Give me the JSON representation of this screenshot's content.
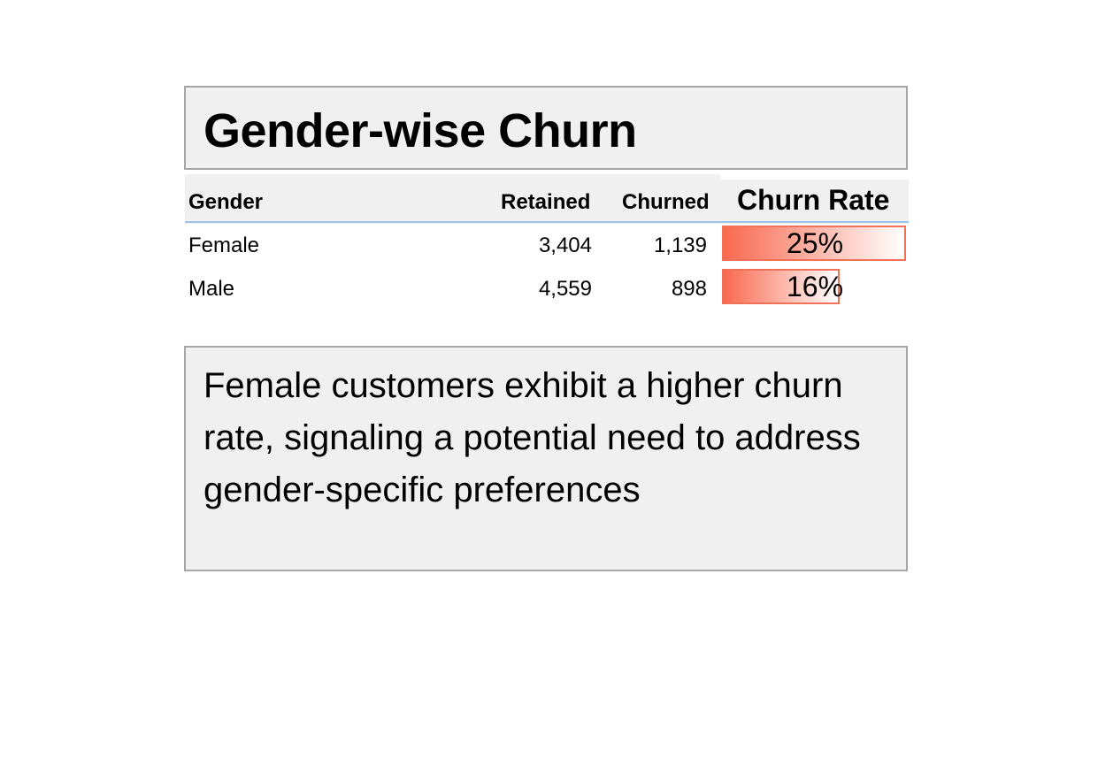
{
  "title": "Gender-wise Churn",
  "table": {
    "headers": {
      "gender": "Gender",
      "retained": "Retained",
      "churned": "Churned",
      "churn_rate": "Churn Rate"
    },
    "rows": [
      {
        "gender": "Female",
        "retained": "3,404",
        "churned": "1,139",
        "churn_rate": "25%",
        "rate_value": 0.25
      },
      {
        "gender": "Male",
        "retained": "4,559",
        "churned": "898",
        "churn_rate": "16%",
        "rate_value": 0.16
      }
    ],
    "bar_color_start": "#f8694f",
    "bar_color_end": "#ffffff",
    "bar_border_color": "#f07058"
  },
  "insight": "Female customers exhibit a higher churn rate, signaling a potential need to address gender-specific preferences"
}
